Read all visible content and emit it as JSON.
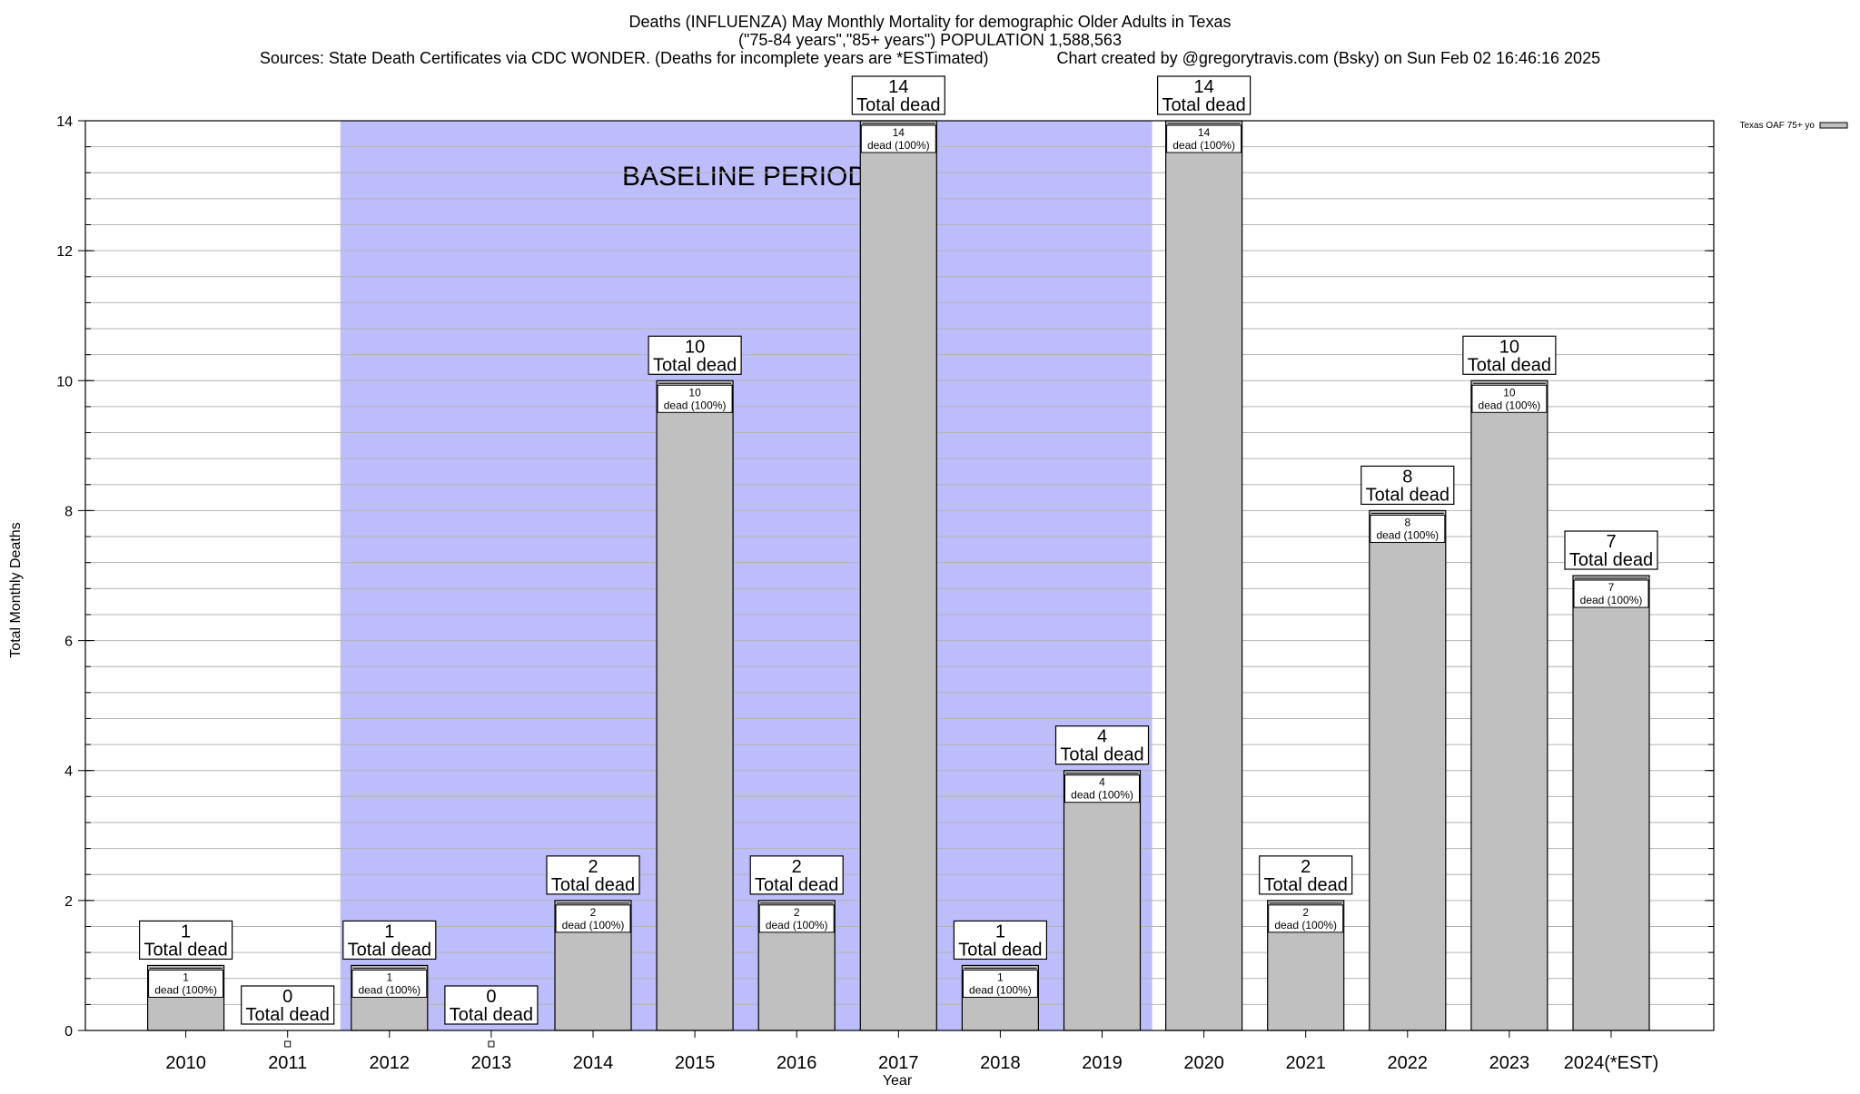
{
  "header": {
    "title": "Deaths (INFLUENZA) May Monthly Mortality for demographic Older Adults in Texas",
    "subtitle": "(\"75-84 years\",\"85+ years\") POPULATION 1,588,563",
    "source_line": "Sources: State Death Certificates via CDC WONDER. (Deaths for incomplete years are *ESTimated)               Chart created by @gregorytravis.com (Bsky) on Sun Feb 02 16:46:16 2025"
  },
  "chart_data": {
    "type": "bar",
    "categories": [
      "2010",
      "2011",
      "2012",
      "2013",
      "2014",
      "2015",
      "2016",
      "2017",
      "2018",
      "2019",
      "2020",
      "2021",
      "2022",
      "2023",
      "2024(*EST)"
    ],
    "series": [
      {
        "name": "Texas OAF 75+ yo",
        "values": [
          1,
          0,
          1,
          0,
          2,
          10,
          2,
          14,
          1,
          4,
          14,
          2,
          8,
          10,
          7
        ],
        "color": "#c0c0c0"
      }
    ],
    "bar_top_label_suffix": "Total dead",
    "bar_inner_label_suffix": "dead (100%)",
    "xlabel": "Year",
    "ylabel": "Total Monthly Deaths",
    "ylim": [
      0,
      14
    ],
    "yticks": [
      0,
      2,
      4,
      6,
      8,
      10,
      12,
      14
    ],
    "minor_grid_step": 0.4,
    "grid": true,
    "legend_position": "top-right",
    "baseline_period": {
      "label": "BASELINE PERIOD",
      "start_category": "2012",
      "end_category": "2019",
      "color": "#bdbdfb"
    }
  }
}
